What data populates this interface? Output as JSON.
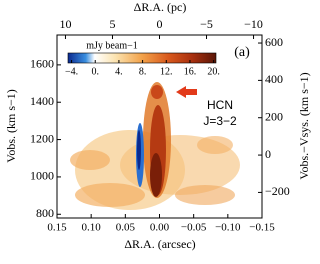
{
  "chart_data": {
    "type": "heatmap",
    "xlabel": "ΔR.A. (arcsec)",
    "x2label": "ΔR.A. (pc)",
    "ylabel": "Vobs. (km s−1)",
    "y2label": "Vobs.−Vsys. (km s−1)",
    "xlim": [
      0.15,
      -0.15
    ],
    "xticks": [
      0.15,
      {
        "value": 0.1,
        "label": "0.10"
      },
      0.05,
      {
        "value": 0,
        "label": "0.00"
      },
      {
        "value": -0.05,
        "label": "−0.05"
      },
      {
        "value": -0.1,
        "label": "−0.10"
      },
      {
        "value": -0.15,
        "label": "−0.15"
      }
    ],
    "x2lim": [
      10.9,
      -10.9
    ],
    "x2ticks": [
      10,
      5,
      0,
      {
        "value": -5,
        "label": "−5"
      },
      {
        "value": -10,
        "label": "−10"
      }
    ],
    "ylim": [
      780,
      1760
    ],
    "yticks": [
      800,
      1000,
      1200,
      1400,
      1600
    ],
    "y2lim": [
      -337,
      643
    ],
    "y2ticks": [
      {
        "value": -200,
        "label": "−200"
      },
      0,
      200,
      400,
      600
    ],
    "colorbar": {
      "label": "mJy beam−1",
      "lim": [
        -4.6,
        20.4
      ],
      "ticks": [
        {
          "value": -4,
          "label": "−4."
        },
        {
          "value": 0,
          "label": "0."
        },
        {
          "value": 4,
          "label": "4."
        },
        {
          "value": 8,
          "label": "8."
        },
        {
          "value": 12,
          "label": "12."
        },
        {
          "value": 16,
          "label": "16."
        },
        {
          "value": 20,
          "label": "20."
        }
      ]
    },
    "annotations": [
      "(a)",
      "HCN",
      "J=3−2"
    ]
  }
}
